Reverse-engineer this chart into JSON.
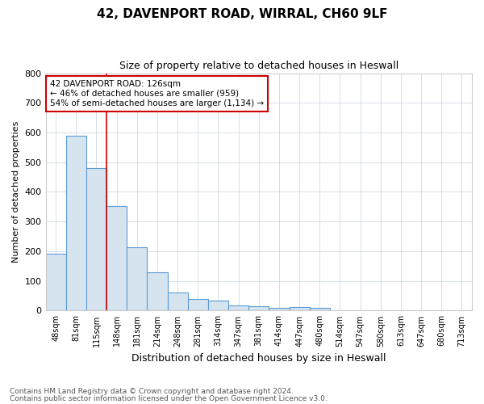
{
  "title": "42, DAVENPORT ROAD, WIRRAL, CH60 9LF",
  "subtitle": "Size of property relative to detached houses in Heswall",
  "xlabel": "Distribution of detached houses by size in Heswall",
  "ylabel": "Number of detached properties",
  "bar_color": "#d6e4f0",
  "bar_edge_color": "#5b9bd5",
  "categories": [
    "48sqm",
    "81sqm",
    "115sqm",
    "148sqm",
    "181sqm",
    "214sqm",
    "248sqm",
    "281sqm",
    "314sqm",
    "347sqm",
    "381sqm",
    "414sqm",
    "447sqm",
    "480sqm",
    "514sqm",
    "547sqm",
    "580sqm",
    "613sqm",
    "647sqm",
    "680sqm",
    "713sqm"
  ],
  "values": [
    192,
    588,
    481,
    351,
    214,
    130,
    62,
    40,
    33,
    18,
    15,
    10,
    12,
    8,
    0,
    0,
    0,
    0,
    0,
    0,
    0
  ],
  "ylim": [
    0,
    800
  ],
  "yticks": [
    0,
    100,
    200,
    300,
    400,
    500,
    600,
    700,
    800
  ],
  "vline_x": 2.5,
  "vline_color": "#cc0000",
  "annotation_text": "42 DAVENPORT ROAD: 126sqm\n← 46% of detached houses are smaller (959)\n54% of semi-detached houses are larger (1,134) →",
  "annotation_box_color": "#ffffff",
  "annotation_box_edge": "#cc0000",
  "footnote1": "Contains HM Land Registry data © Crown copyright and database right 2024.",
  "footnote2": "Contains public sector information licensed under the Open Government Licence v3.0.",
  "background_color": "#ffffff",
  "grid_color": "#c8d0dc"
}
